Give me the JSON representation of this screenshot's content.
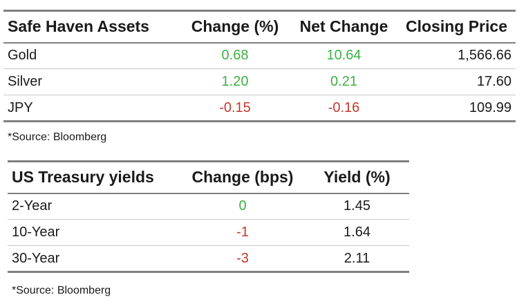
{
  "colors": {
    "positive": "#3cb043",
    "negative": "#c0392b",
    "neutral": "#1a1a1a",
    "rule": "#7f7f7f"
  },
  "safe_haven": {
    "headers": [
      "Safe Haven Assets",
      "Change (%)",
      "Net Change",
      "Closing Price"
    ],
    "rows": [
      {
        "asset": "Gold",
        "change_pct": "0.68",
        "net_change": "10.64",
        "closing_price": "1,566.66",
        "trend": "positive"
      },
      {
        "asset": "Silver",
        "change_pct": "1.20",
        "net_change": "0.21",
        "closing_price": "17.60",
        "trend": "positive"
      },
      {
        "asset": "JPY",
        "change_pct": "-0.15",
        "net_change": "-0.16",
        "closing_price": "109.99",
        "trend": "negative"
      }
    ],
    "source": "*Source: Bloomberg"
  },
  "treasury": {
    "headers": [
      "US Treasury yields",
      "Change (bps)",
      "Yield (%)"
    ],
    "rows": [
      {
        "term": "2-Year",
        "change_bps": "0",
        "yield": "1.45",
        "trend": "positive"
      },
      {
        "term": "10-Year",
        "change_bps": "-1",
        "yield": "1.64",
        "trend": "negative"
      },
      {
        "term": "30-Year",
        "change_bps": "-3",
        "yield": "2.11",
        "trend": "negative"
      }
    ],
    "source": "*Source: Bloomberg"
  }
}
